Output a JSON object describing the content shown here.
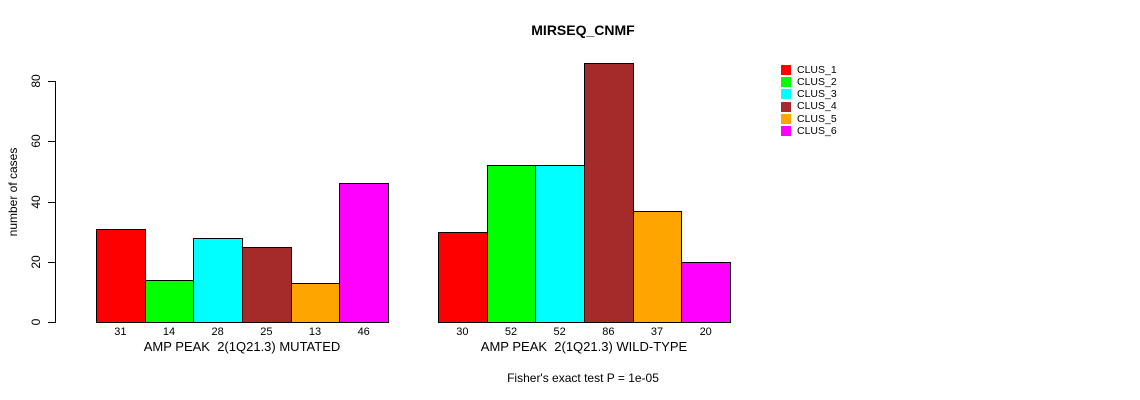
{
  "title": "MIRSEQ_CNMF",
  "footer": "Fisher's exact test P = 1e-05",
  "chart_data": {
    "type": "bar",
    "title": "MIRSEQ_CNMF",
    "xlabel": "",
    "ylabel": "number of cases",
    "ylim": [
      0,
      86
    ],
    "yticks": [
      0,
      20,
      40,
      60,
      80
    ],
    "grid": false,
    "legend_position": "right",
    "bar_value_labels": true,
    "categories": [
      "AMP PEAK  2(1Q21.3) MUTATED",
      "AMP PEAK  2(1Q21.3) WILD-TYPE"
    ],
    "series": [
      {
        "name": "CLUS_1",
        "color": "#FF0000",
        "values": [
          31,
          30
        ]
      },
      {
        "name": "CLUS_2",
        "color": "#00FF00",
        "values": [
          14,
          52
        ]
      },
      {
        "name": "CLUS_3",
        "color": "#00FFFF",
        "values": [
          28,
          52
        ]
      },
      {
        "name": "CLUS_4",
        "color": "#A52A2A",
        "values": [
          25,
          86
        ]
      },
      {
        "name": "CLUS_5",
        "color": "#FFA500",
        "values": [
          13,
          37
        ]
      },
      {
        "name": "CLUS_6",
        "color": "#FF00FF",
        "values": [
          46,
          20
        ]
      }
    ],
    "annotation": "Fisher's exact test P = 1e-05"
  }
}
